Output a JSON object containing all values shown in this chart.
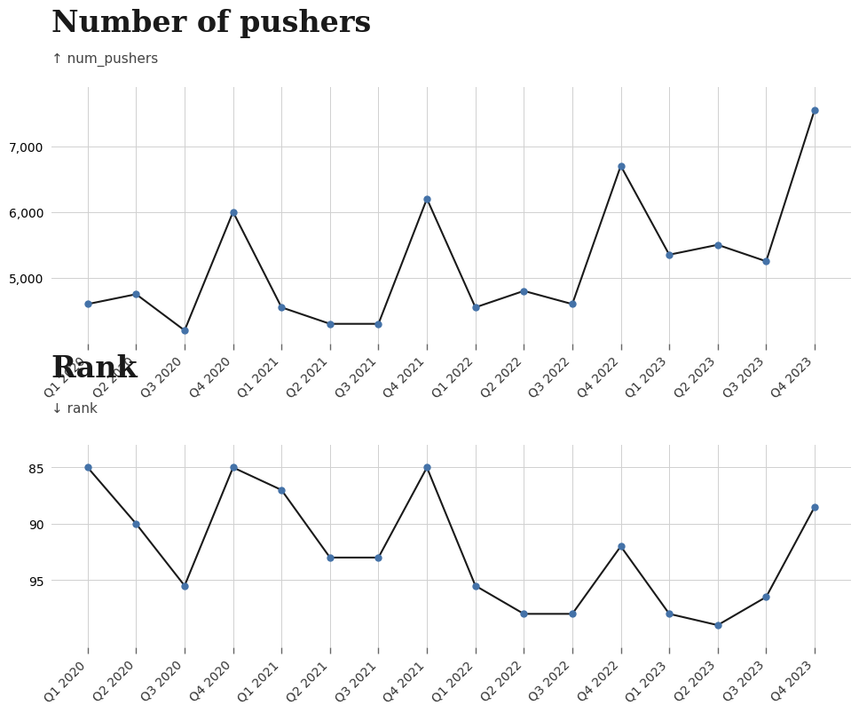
{
  "quarters": [
    "Q1 2020",
    "Q2 2020",
    "Q3 2020",
    "Q4 2020",
    "Q1 2021",
    "Q2 2021",
    "Q3 2021",
    "Q4 2021",
    "Q1 2022",
    "Q2 2022",
    "Q3 2022",
    "Q4 2022",
    "Q1 2023",
    "Q2 2023",
    "Q3 2023",
    "Q4 2023"
  ],
  "num_pushers": [
    4600,
    4750,
    4200,
    6000,
    4550,
    4300,
    4300,
    6200,
    4550,
    4800,
    4600,
    6700,
    5350,
    5500,
    5250,
    7550
  ],
  "rank": [
    85,
    90,
    95.5,
    85,
    87,
    93,
    93,
    85,
    95.5,
    98,
    98,
    92,
    98,
    99,
    96.5,
    88.5
  ],
  "pushers_title": "Number of pushers",
  "rank_title": "Rank",
  "pushers_axis_label": "↑ num_pushers",
  "rank_axis_label": "↓ rank",
  "line_color": "#1a1a1a",
  "marker_color": "#4472a8",
  "marker_size": 5,
  "pushers_yticks": [
    5000,
    6000,
    7000
  ],
  "rank_yticks": [
    85,
    90,
    95
  ],
  "pushers_ylim": [
    4000,
    7900
  ],
  "rank_ylim": [
    83,
    101
  ],
  "bg_color": "#ffffff",
  "grid_color": "#d0d0d0",
  "title_fontsize": 24,
  "axis_label_fontsize": 11,
  "tick_fontsize": 10,
  "title_color": "#1a1a1a"
}
